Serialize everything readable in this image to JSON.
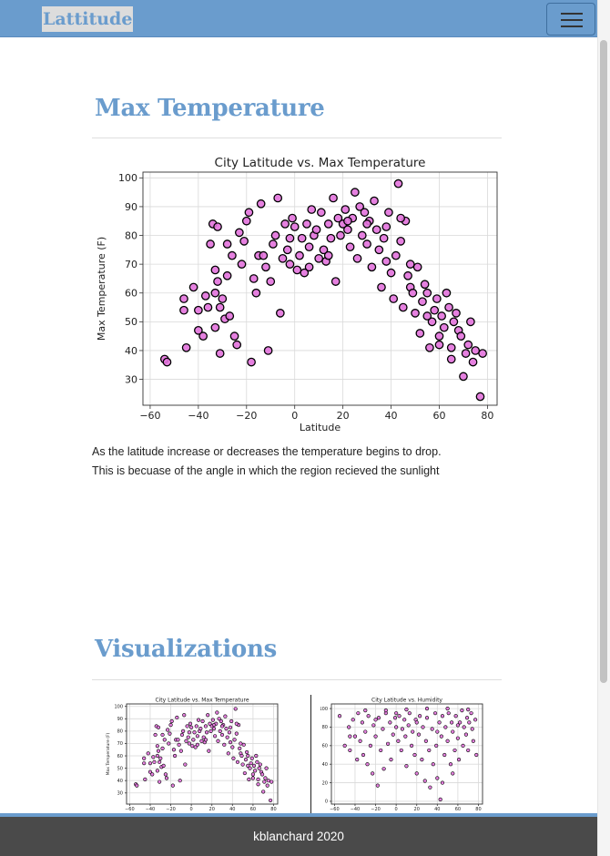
{
  "navbar": {
    "brand": "Lattitude",
    "menu_icon": "hamburger-menu-icon"
  },
  "section_max_temp": {
    "title": "Max Temperature",
    "description_line1": "As the latitude increase or decreases the temperature begins to drop.",
    "description_line2": "This is becuase of the angle in which the region recieved the sunlight"
  },
  "section_visualizations": {
    "title": "Visualizations"
  },
  "footer": {
    "text": "kblanchard 2020"
  },
  "colors": {
    "accent": "#6a9ccd",
    "marker_fill": "#e272dc",
    "marker_edge": "#000000",
    "footer_bg": "#4a4a4a"
  },
  "chart_data": [
    {
      "type": "scatter",
      "title": "City Latitude vs. Max Temperature",
      "xlabel": "Latitude",
      "ylabel": "Max Temperature (F)",
      "xlim": [
        -63,
        84
      ],
      "ylim": [
        21,
        102
      ],
      "xticks": [
        -60,
        -40,
        -20,
        0,
        20,
        40,
        60,
        80
      ],
      "yticks": [
        30,
        40,
        50,
        60,
        70,
        80,
        90,
        100
      ],
      "grid": true,
      "points": [
        [
          -54,
          37
        ],
        [
          -53,
          36
        ],
        [
          -46,
          58
        ],
        [
          -46,
          54
        ],
        [
          -45,
          41
        ],
        [
          -42,
          62
        ],
        [
          -40,
          47
        ],
        [
          -40,
          54
        ],
        [
          -38,
          45
        ],
        [
          -37,
          59
        ],
        [
          -36,
          55
        ],
        [
          -35,
          77
        ],
        [
          -34,
          84
        ],
        [
          -33,
          68
        ],
        [
          -33,
          60
        ],
        [
          -33,
          48
        ],
        [
          -32,
          83
        ],
        [
          -32,
          64
        ],
        [
          -31,
          55
        ],
        [
          -31,
          39
        ],
        [
          -30,
          58
        ],
        [
          -29,
          51
        ],
        [
          -28,
          77
        ],
        [
          -27,
          52
        ],
        [
          -26,
          73
        ],
        [
          -25,
          45
        ],
        [
          -24,
          42
        ],
        [
          -23,
          81
        ],
        [
          -22,
          70
        ],
        [
          -21,
          78
        ],
        [
          -20,
          85
        ],
        [
          -19,
          88
        ],
        [
          -18,
          36
        ],
        [
          -17,
          65
        ],
        [
          -16,
          60
        ],
        [
          -15,
          73
        ],
        [
          -14,
          91
        ],
        [
          -12,
          69
        ],
        [
          -11,
          40
        ],
        [
          -10,
          64
        ],
        [
          -9,
          77
        ],
        [
          -8,
          80
        ],
        [
          -7,
          93
        ],
        [
          -6,
          53
        ],
        [
          -5,
          72
        ],
        [
          -4,
          84
        ],
        [
          -3,
          75
        ],
        [
          -2,
          79
        ],
        [
          -1,
          86
        ],
        [
          0,
          83
        ],
        [
          1,
          68
        ],
        [
          2,
          73
        ],
        [
          3,
          79
        ],
        [
          4,
          67
        ],
        [
          5,
          84
        ],
        [
          6,
          69
        ],
        [
          7,
          89
        ],
        [
          8,
          80
        ],
        [
          9,
          82
        ],
        [
          10,
          72
        ],
        [
          11,
          88
        ],
        [
          12,
          75
        ],
        [
          13,
          71
        ],
        [
          14,
          84
        ],
        [
          15,
          79
        ],
        [
          16,
          93
        ],
        [
          17,
          64
        ],
        [
          18,
          86
        ],
        [
          19,
          80
        ],
        [
          20,
          84
        ],
        [
          21,
          89
        ],
        [
          22,
          82
        ],
        [
          23,
          76
        ],
        [
          24,
          86
        ],
        [
          25,
          95
        ],
        [
          26,
          72
        ],
        [
          27,
          90
        ],
        [
          28,
          80
        ],
        [
          29,
          88
        ],
        [
          30,
          77
        ],
        [
          31,
          85
        ],
        [
          32,
          69
        ],
        [
          33,
          92
        ],
        [
          34,
          82
        ],
        [
          35,
          75
        ],
        [
          36,
          62
        ],
        [
          37,
          79
        ],
        [
          38,
          71
        ],
        [
          39,
          88
        ],
        [
          40,
          67
        ],
        [
          41,
          58
        ],
        [
          42,
          73
        ],
        [
          43,
          98
        ],
        [
          44,
          78
        ],
        [
          45,
          55
        ],
        [
          46,
          85
        ],
        [
          47,
          66
        ],
        [
          48,
          62
        ],
        [
          49,
          60
        ],
        [
          50,
          53
        ],
        [
          51,
          69
        ],
        [
          52,
          46
        ],
        [
          53,
          57
        ],
        [
          54,
          63
        ],
        [
          55,
          60
        ],
        [
          56,
          41
        ],
        [
          57,
          50
        ],
        [
          58,
          54
        ],
        [
          59,
          58
        ],
        [
          60,
          45
        ],
        [
          61,
          52
        ],
        [
          62,
          48
        ],
        [
          63,
          60
        ],
        [
          64,
          55
        ],
        [
          65,
          41
        ],
        [
          66,
          50
        ],
        [
          67,
          53
        ],
        [
          68,
          47
        ],
        [
          69,
          45
        ],
        [
          70,
          31
        ],
        [
          71,
          39
        ],
        [
          72,
          42
        ],
        [
          73,
          50
        ],
        [
          74,
          36
        ],
        [
          75,
          40
        ],
        [
          78,
          39
        ],
        [
          77,
          24
        ],
        [
          65,
          37
        ],
        [
          60,
          42
        ],
        [
          55,
          52
        ],
        [
          48,
          70
        ],
        [
          44,
          86
        ],
        [
          38,
          83
        ],
        [
          30,
          84
        ],
        [
          22,
          85
        ],
        [
          14,
          73
        ],
        [
          6,
          76
        ],
        [
          -2,
          70
        ],
        [
          -13,
          73
        ],
        [
          -28,
          66
        ]
      ]
    },
    {
      "type": "scatter",
      "title": "City Latitude vs. Max Temperature",
      "xlabel": "",
      "ylabel": "Max Temperature (F)",
      "xlim": [
        -63,
        84
      ],
      "ylim": [
        21,
        102
      ],
      "xticks": [
        -60,
        -40,
        -20,
        0,
        20,
        40,
        60,
        80
      ],
      "yticks": [
        30,
        40,
        50,
        60,
        70,
        80,
        90,
        100
      ],
      "grid": true
    },
    {
      "type": "scatter",
      "title": "City Latitude vs. Humidity",
      "xlabel": "",
      "ylabel": "Humidity (%)",
      "xlim": [
        -63,
        84
      ],
      "ylim": [
        -3,
        105
      ],
      "xticks": [
        -60,
        -40,
        -20,
        0,
        20,
        40,
        60,
        80
      ],
      "yticks": [
        0,
        20,
        40,
        60,
        80,
        100
      ],
      "grid": true,
      "points": [
        [
          -55,
          92
        ],
        [
          -50,
          60
        ],
        [
          -46,
          80
        ],
        [
          -45,
          55
        ],
        [
          -42,
          88
        ],
        [
          -40,
          70
        ],
        [
          -38,
          45
        ],
        [
          -37,
          95
        ],
        [
          -35,
          65
        ],
        [
          -33,
          85
        ],
        [
          -32,
          50
        ],
        [
          -30,
          75
        ],
        [
          -28,
          40
        ],
        [
          -27,
          92
        ],
        [
          -25,
          60
        ],
        [
          -23,
          30
        ],
        [
          -22,
          82
        ],
        [
          -20,
          70
        ],
        [
          -18,
          17
        ],
        [
          -17,
          90
        ],
        [
          -15,
          55
        ],
        [
          -13,
          78
        ],
        [
          -12,
          35
        ],
        [
          -10,
          95
        ],
        [
          -8,
          62
        ],
        [
          -6,
          85
        ],
        [
          -5,
          45
        ],
        [
          -3,
          72
        ],
        [
          -1,
          90
        ],
        [
          0,
          80
        ],
        [
          2,
          65
        ],
        [
          3,
          92
        ],
        [
          5,
          55
        ],
        [
          6,
          78
        ],
        [
          8,
          88
        ],
        [
          9,
          70
        ],
        [
          10,
          38
        ],
        [
          12,
          82
        ],
        [
          13,
          95
        ],
        [
          15,
          60
        ],
        [
          16,
          75
        ],
        [
          18,
          50
        ],
        [
          19,
          88
        ],
        [
          20,
          30
        ],
        [
          22,
          72
        ],
        [
          23,
          92
        ],
        [
          25,
          45
        ],
        [
          26,
          80
        ],
        [
          28,
          22
        ],
        [
          29,
          65
        ],
        [
          30,
          90
        ],
        [
          32,
          55
        ],
        [
          33,
          15
        ],
        [
          35,
          78
        ],
        [
          36,
          40
        ],
        [
          38,
          95
        ],
        [
          39,
          60
        ],
        [
          40,
          25
        ],
        [
          42,
          85
        ],
        [
          43,
          2
        ],
        [
          44,
          70
        ],
        [
          45,
          92
        ],
        [
          47,
          50
        ],
        [
          48,
          80
        ],
        [
          50,
          65
        ],
        [
          51,
          95
        ],
        [
          53,
          40
        ],
        [
          54,
          85
        ],
        [
          55,
          75
        ],
        [
          57,
          55
        ],
        [
          58,
          92
        ],
        [
          60,
          68
        ],
        [
          61,
          45
        ],
        [
          62,
          85
        ],
        [
          64,
          98
        ],
        [
          65,
          60
        ],
        [
          66,
          80
        ],
        [
          68,
          72
        ],
        [
          69,
          90
        ],
        [
          70,
          55
        ],
        [
          71,
          85
        ],
        [
          73,
          95
        ],
        [
          74,
          78
        ],
        [
          75,
          65
        ],
        [
          77,
          88
        ],
        [
          78,
          50
        ],
        [
          -30,
          98
        ],
        [
          -10,
          98
        ],
        [
          10,
          99
        ],
        [
          30,
          100
        ],
        [
          50,
          100
        ],
        [
          70,
          99
        ],
        [
          -20,
          88
        ],
        [
          0,
          95
        ],
        [
          20,
          85
        ],
        [
          40,
          75
        ],
        [
          60,
          82
        ],
        [
          -45,
          70
        ],
        [
          55,
          30
        ],
        [
          45,
          20
        ]
      ]
    }
  ]
}
